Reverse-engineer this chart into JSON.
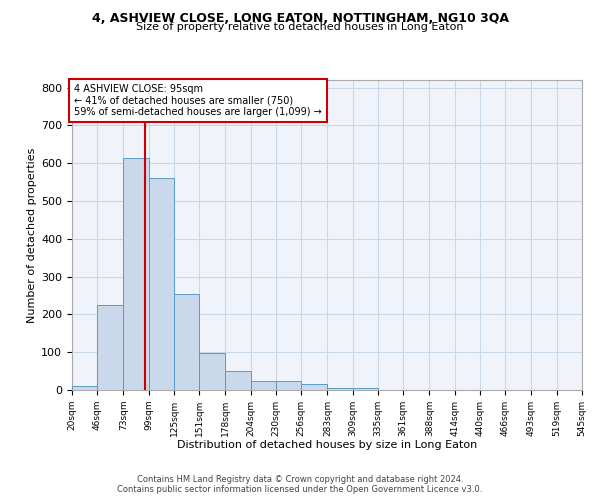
{
  "title1": "4, ASHVIEW CLOSE, LONG EATON, NOTTINGHAM, NG10 3QA",
  "title2": "Size of property relative to detached houses in Long Eaton",
  "xlabel": "Distribution of detached houses by size in Long Eaton",
  "ylabel": "Number of detached properties",
  "bin_edges": [
    20,
    46,
    73,
    99,
    125,
    151,
    178,
    204,
    230,
    256,
    283,
    309,
    335,
    361,
    388,
    414,
    440,
    466,
    493,
    519,
    545
  ],
  "bar_heights": [
    10,
    225,
    615,
    560,
    255,
    97,
    50,
    25,
    25,
    15,
    6,
    4,
    0,
    0,
    0,
    0,
    0,
    0,
    0,
    0
  ],
  "bar_color": "#c9d9eb",
  "bar_edge_color": "#5a9ac8",
  "property_size": 95,
  "vline_color": "#cc0000",
  "annotation_text": "4 ASHVIEW CLOSE: 95sqm\n← 41% of detached houses are smaller (750)\n59% of semi-detached houses are larger (1,099) →",
  "annotation_box_color": "#ffffff",
  "annotation_box_edge": "#cc0000",
  "ylim": [
    0,
    820
  ],
  "xlim_min": 20,
  "xlim_max": 545,
  "grid_color": "#c8d8e8",
  "footnote1": "Contains HM Land Registry data © Crown copyright and database right 2024.",
  "footnote2": "Contains public sector information licensed under the Open Government Licence v3.0.",
  "tick_labels": [
    "20sqm",
    "46sqm",
    "73sqm",
    "99sqm",
    "125sqm",
    "151sqm",
    "178sqm",
    "204sqm",
    "230sqm",
    "256sqm",
    "283sqm",
    "309sqm",
    "335sqm",
    "361sqm",
    "388sqm",
    "414sqm",
    "440sqm",
    "466sqm",
    "493sqm",
    "519sqm",
    "545sqm"
  ],
  "yticks": [
    0,
    100,
    200,
    300,
    400,
    500,
    600,
    700,
    800
  ],
  "bg_color": "#f0f4fa"
}
